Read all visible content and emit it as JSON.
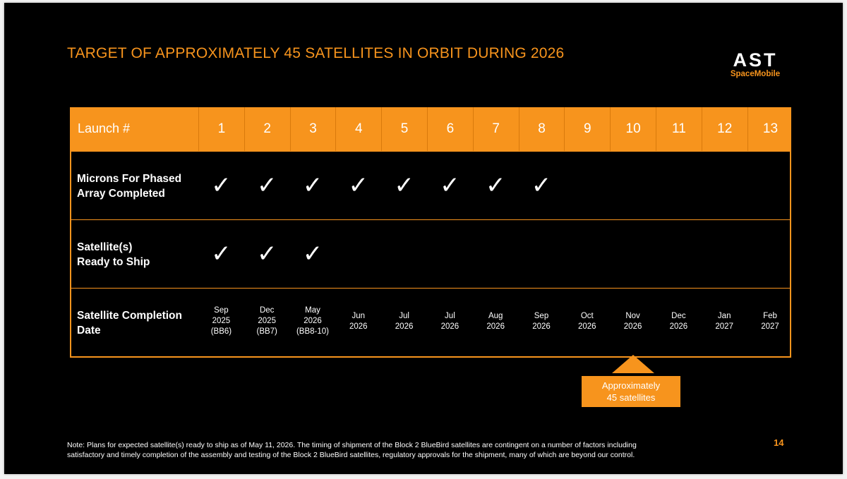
{
  "title": "TARGET OF APPROXIMATELY 45 SATELLITES IN ORBIT DURING 2026",
  "logo": {
    "mark": "AST",
    "sub": "SpaceMobile"
  },
  "table": {
    "header_label": "Launch #",
    "launches": [
      "1",
      "2",
      "3",
      "4",
      "5",
      "6",
      "7",
      "8",
      "9",
      "10",
      "11",
      "12",
      "13"
    ],
    "rows": [
      {
        "label_line1": "Microns For Phased",
        "label_line2": "Array Completed",
        "checked_count": 8
      },
      {
        "label_line1": "Satellite(s)",
        "label_line2": "Ready to Ship",
        "checked_count": 3
      }
    ],
    "check_symbol": "✓",
    "date_row": {
      "label_line1": "Satellite Completion",
      "label_line2": "Date",
      "dates": [
        [
          "Sep",
          "2025",
          "(BB6)"
        ],
        [
          "Dec",
          "2025",
          "(BB7)"
        ],
        [
          "May",
          "2026",
          "(BB8-10)"
        ],
        [
          "Jun",
          "2026"
        ],
        [
          "Jul",
          "2026"
        ],
        [
          "Jul",
          "2026"
        ],
        [
          "Aug",
          "2026"
        ],
        [
          "Sep",
          "2026"
        ],
        [
          "Oct",
          "2026"
        ],
        [
          "Nov",
          "2026"
        ],
        [
          "Dec",
          "2026"
        ],
        [
          "Jan",
          "2027"
        ],
        [
          "Feb",
          "2027"
        ]
      ]
    }
  },
  "callout": {
    "line1": "Approximately",
    "line2": "45 satellites"
  },
  "note": {
    "line1": "Note: Plans for expected satellite(s) ready to ship as of May 11, 2026. The timing of shipment of the Block 2 BlueBird satellites are contingent on a number of factors including",
    "line2": "satisfactory and timely completion of the assembly and testing of the Block 2 BlueBird satellites, regulatory approvals for the shipment, many of which are beyond our control."
  },
  "page_number": "14",
  "colors": {
    "accent": "#f7941d",
    "background": "#000000",
    "text": "#ffffff"
  }
}
